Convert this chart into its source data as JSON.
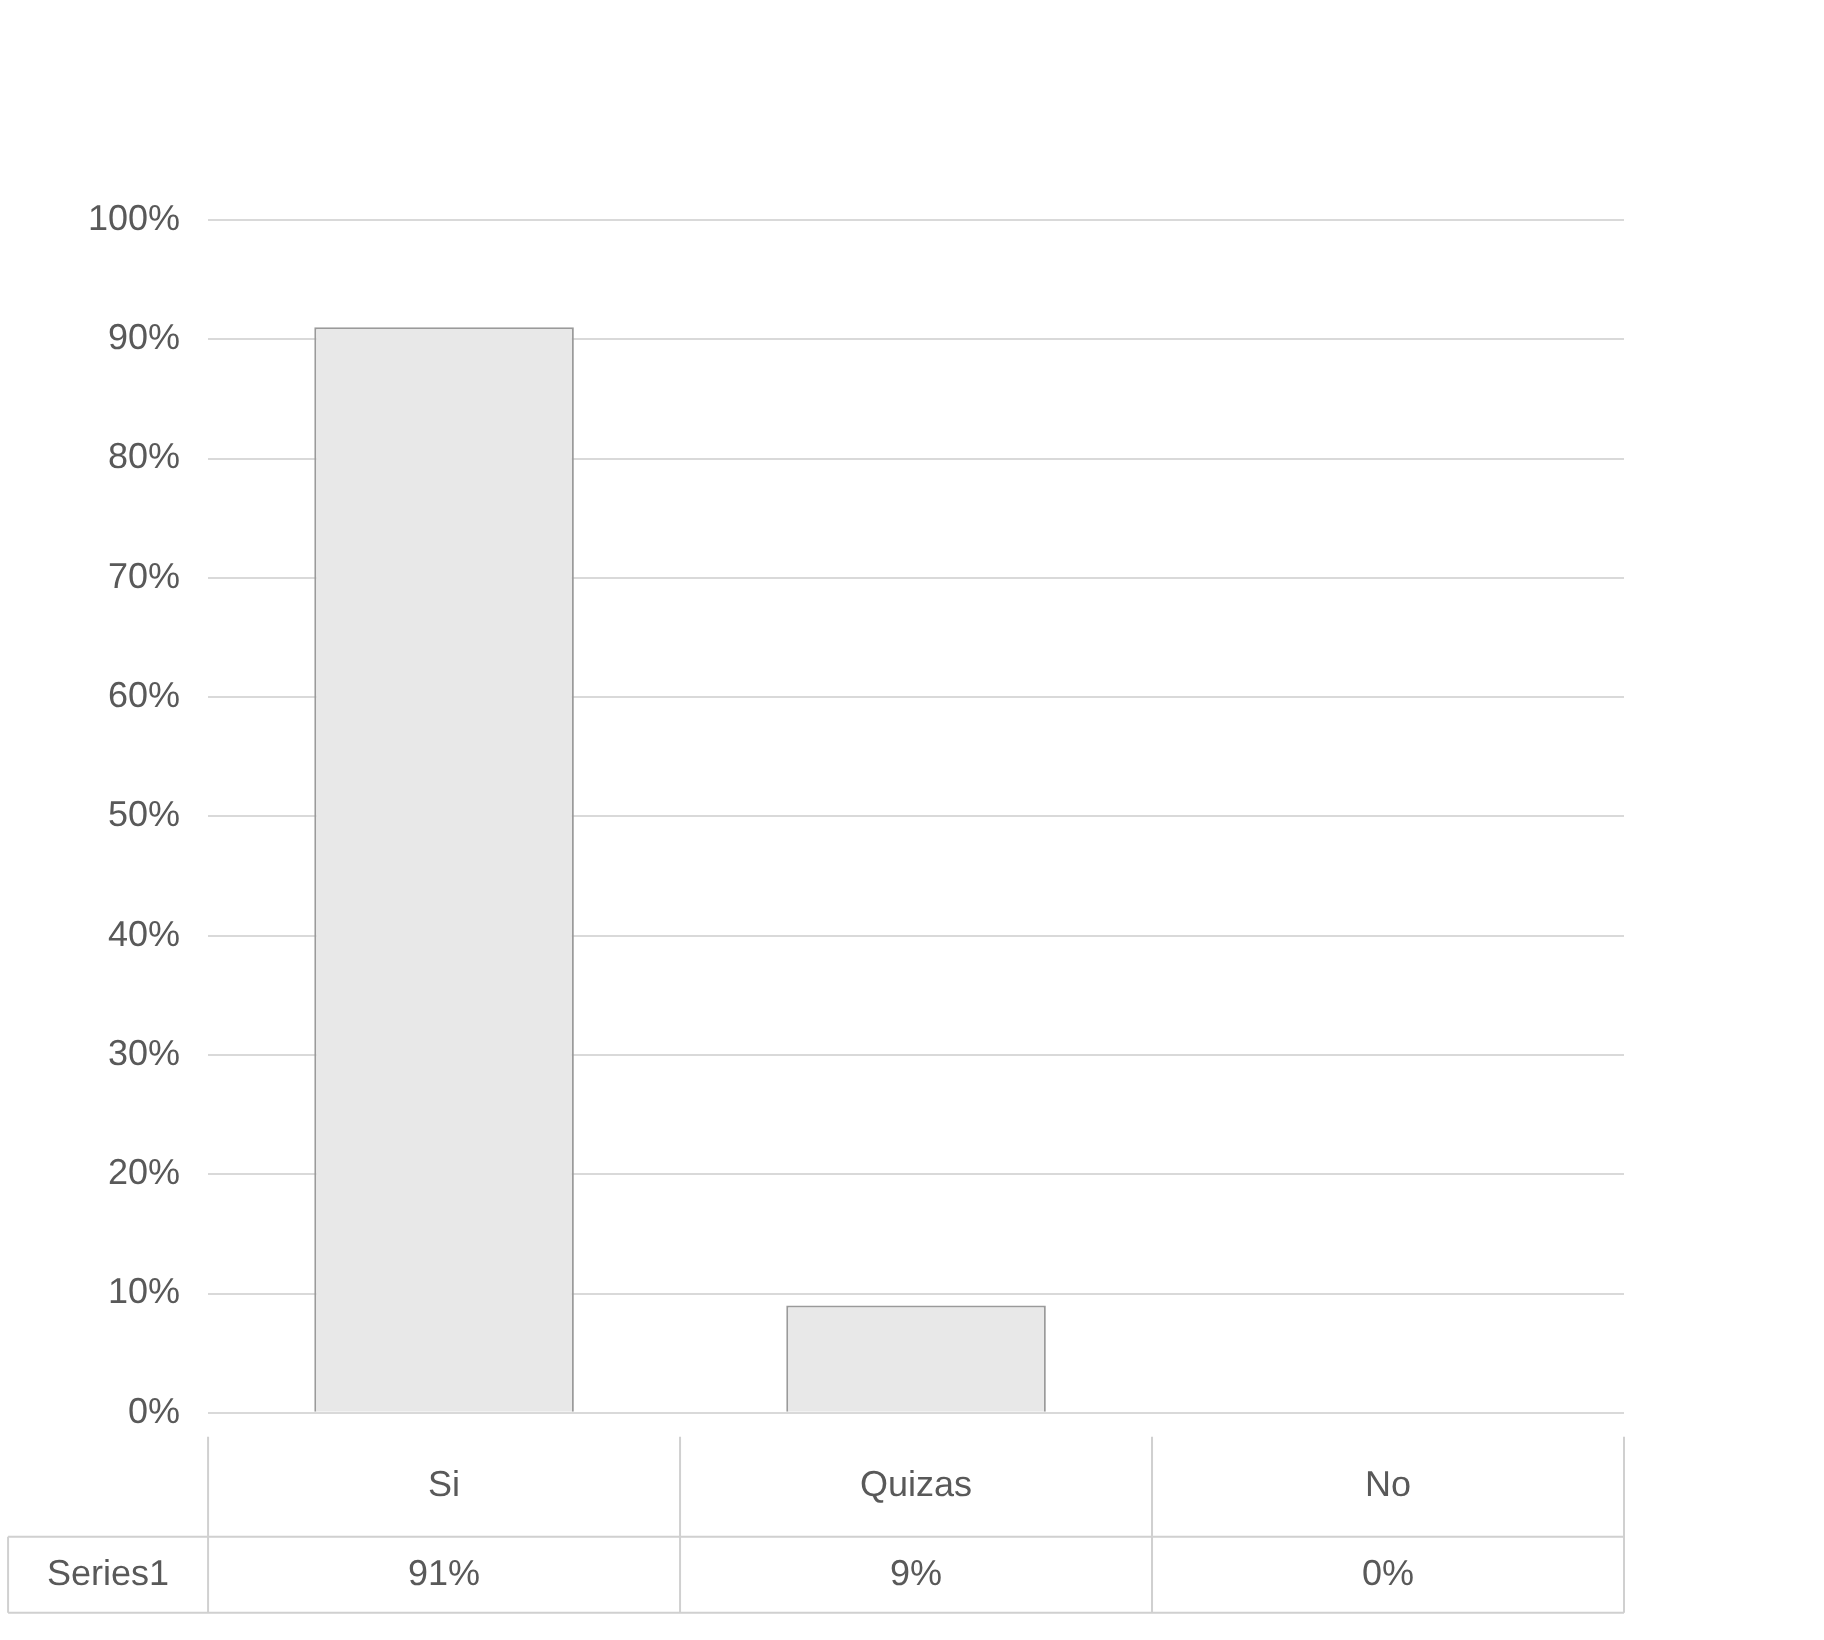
{
  "chart_data": {
    "type": "bar",
    "categories": [
      "Si",
      "Quizas",
      "No"
    ],
    "series": [
      {
        "name": "Series1",
        "color": "#e8e8e8",
        "values": [
          91,
          9,
          0
        ],
        "value_labels": [
          "91%",
          "9%",
          "0%"
        ]
      }
    ],
    "ylim": [
      0,
      100
    ],
    "yticks": [
      {
        "value": 0,
        "label": "0%"
      },
      {
        "value": 10,
        "label": "10%"
      },
      {
        "value": 20,
        "label": "20%"
      },
      {
        "value": 30,
        "label": "30%"
      },
      {
        "value": 40,
        "label": "40%"
      },
      {
        "value": 50,
        "label": "50%"
      },
      {
        "value": 60,
        "label": "60%"
      },
      {
        "value": 70,
        "label": "70%"
      },
      {
        "value": 80,
        "label": "80%"
      },
      {
        "value": 90,
        "label": "90%"
      },
      {
        "value": 100,
        "label": "100%"
      }
    ],
    "grid": "y",
    "legend": false
  }
}
